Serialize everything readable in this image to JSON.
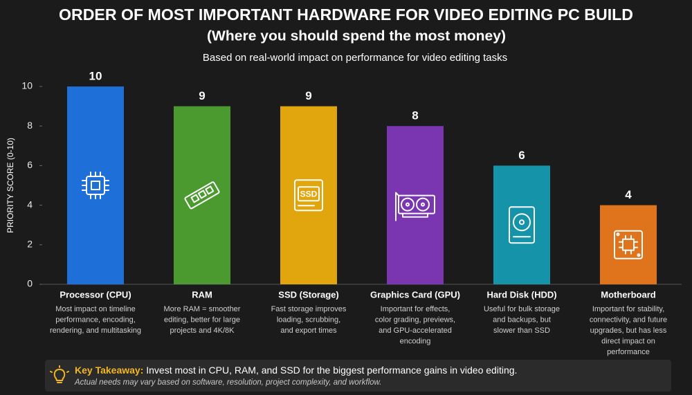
{
  "chart_data": {
    "type": "bar",
    "title": "ORDER OF MOST IMPORTANT HARDWARE FOR VIDEO EDITING PC BUILD",
    "subtitle": "(Where you should spend the most money)",
    "description": "Based on real-world impact on performance for video editing tasks",
    "y_label": "PRIORITY SCORE (0-10)",
    "categories": [
      "Processor (CPU)",
      "RAM",
      "SSD (Storage)",
      "Graphics Card (GPU)",
      "Hard Disk (HDD)",
      "Motherboard"
    ],
    "values": [
      10,
      9,
      9,
      8,
      6,
      4
    ],
    "colors": [
      "#1f6fd8",
      "#4b9a2f",
      "#e1a50d",
      "#7a35b1",
      "#1593a9",
      "#e0741c"
    ],
    "icon_labels": [
      null,
      null,
      "SSD",
      null,
      null,
      null
    ],
    "descriptions": [
      [
        "Most impact on timeline",
        "performance, encoding,",
        "rendering, and multitasking"
      ],
      [
        "More RAM = smoother",
        "editing, better for large",
        "projects and 4K/8K"
      ],
      [
        "Fast storage improves",
        "loading, scrubbing,",
        "and export times"
      ],
      [
        "Important for effects,",
        "color grading, previews,",
        "and GPU-accelerated",
        "encoding"
      ],
      [
        "Useful for bulk storage",
        "and backups, but",
        "slower than SSD"
      ],
      [
        "Important for stability,",
        "connectivity, and future",
        "upgrades, but has less",
        "direct impact on",
        "performance"
      ]
    ],
    "ylim": [
      0,
      10
    ],
    "yticks": [
      0,
      2,
      4,
      6,
      8,
      10
    ],
    "grid": false,
    "takeaway": {
      "label": "Key Takeaway:",
      "text": "Invest most in CPU, RAM, and SSD for the biggest performance gains in video editing.",
      "note": "Actual needs may vary based on software, resolution, project complexity, and workflow."
    }
  }
}
